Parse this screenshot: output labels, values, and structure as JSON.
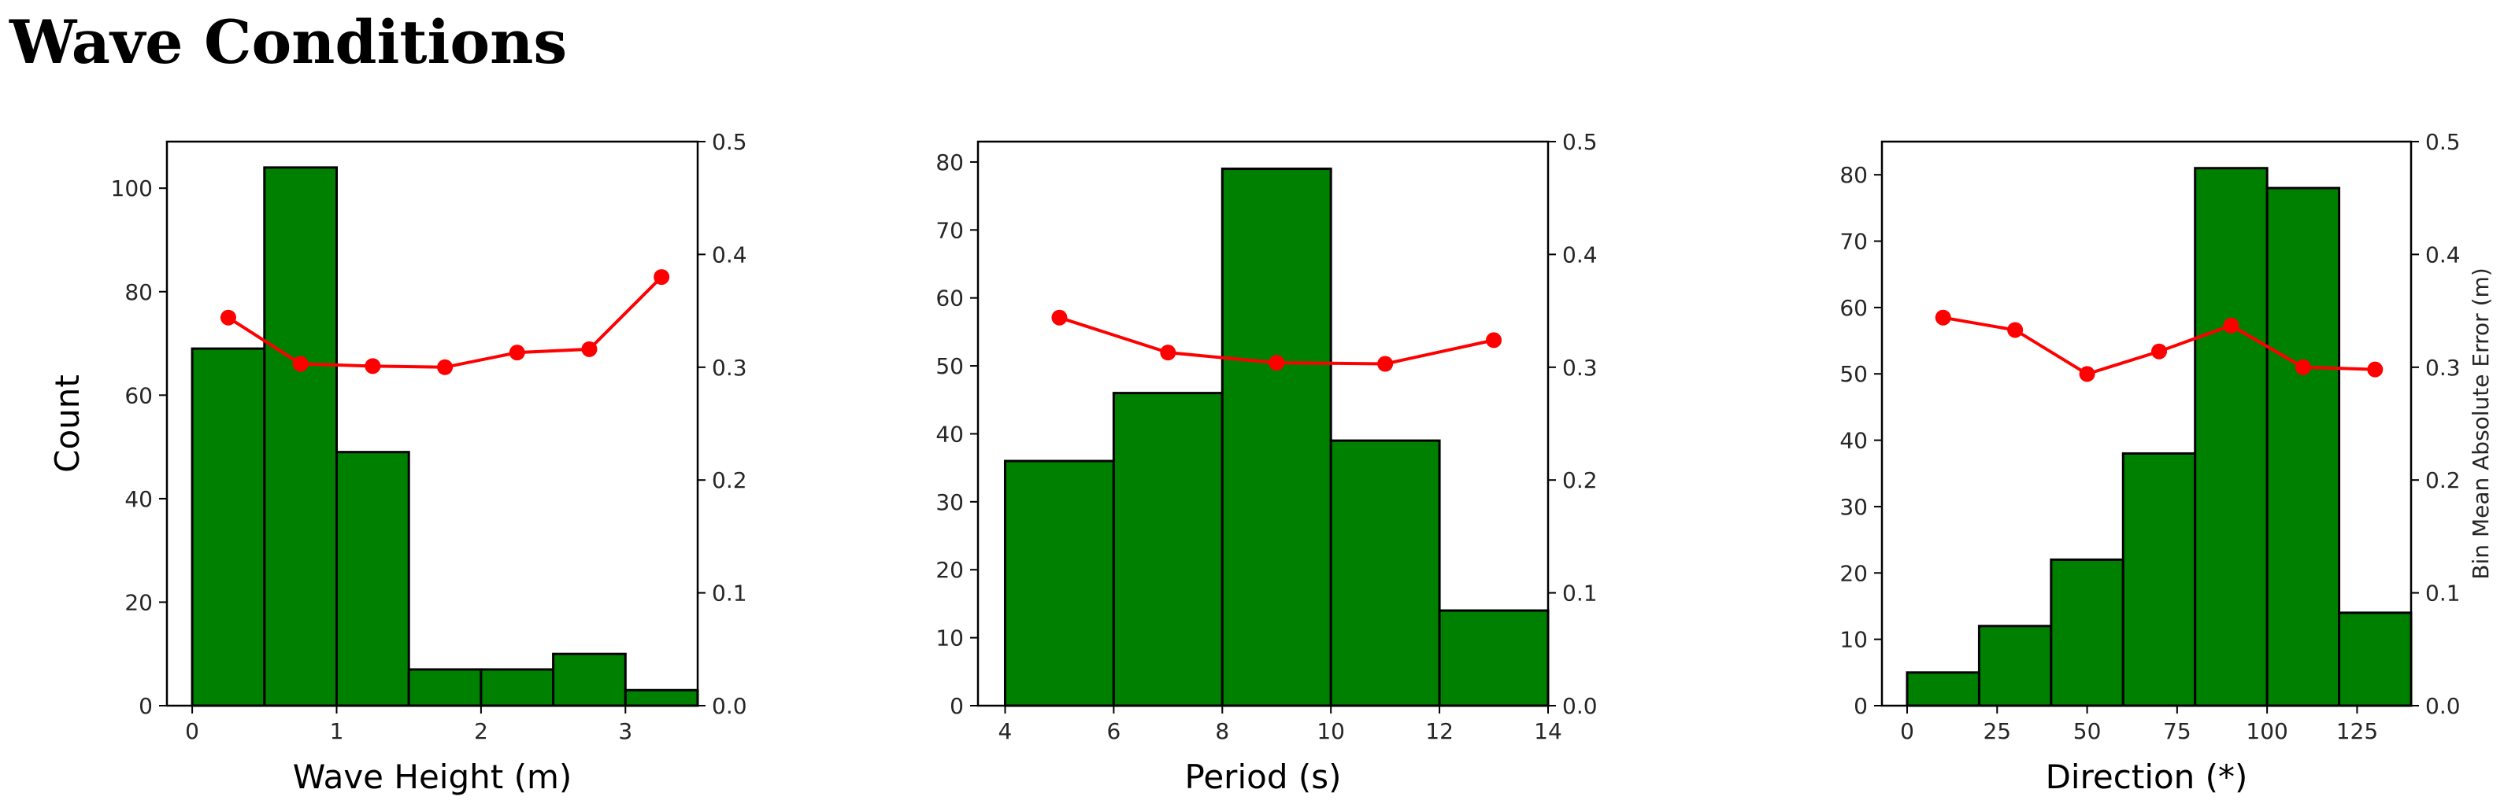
{
  "page": {
    "title": "Wave Conditions"
  },
  "colors": {
    "bar_fill": "#008000",
    "bar_edge": "#000000",
    "line": "#ff0000"
  },
  "chart_data": [
    {
      "type": "bar",
      "xlabel": "Wave Height (m)",
      "ylabel": "Count",
      "y2label": "",
      "xlim": [
        -0.175,
        3.5
      ],
      "ylim": [
        0,
        109
      ],
      "y2lim": [
        0,
        0.5
      ],
      "xticks": [
        0,
        1,
        2,
        3
      ],
      "yticks": [
        0,
        20,
        40,
        60,
        80,
        100
      ],
      "y2ticks": [
        0.0,
        0.1,
        0.2,
        0.3,
        0.4,
        0.5
      ],
      "bins": [
        [
          0,
          0.5
        ],
        [
          0.5,
          1.0
        ],
        [
          1.0,
          1.5
        ],
        [
          1.5,
          2.0
        ],
        [
          2.0,
          2.5
        ],
        [
          2.5,
          3.0
        ],
        [
          3.0,
          3.5
        ]
      ],
      "counts": [
        69,
        104,
        49,
        7,
        7,
        10,
        3
      ],
      "error_x": [
        0.25,
        0.75,
        1.25,
        1.75,
        2.25,
        2.75,
        3.25
      ],
      "error_y": [
        0.344,
        0.303,
        0.301,
        0.3,
        0.313,
        0.316,
        0.38
      ]
    },
    {
      "type": "bar",
      "xlabel": "Period (s)",
      "ylabel": "",
      "y2label": "",
      "xlim": [
        3.5,
        14
      ],
      "ylim": [
        0,
        83
      ],
      "y2lim": [
        0,
        0.5
      ],
      "xticks": [
        4,
        6,
        8,
        10,
        12,
        14
      ],
      "yticks": [
        0,
        10,
        20,
        30,
        40,
        50,
        60,
        70,
        80
      ],
      "y2ticks": [
        0.0,
        0.1,
        0.2,
        0.3,
        0.4,
        0.5
      ],
      "bins": [
        [
          4,
          6
        ],
        [
          6,
          8
        ],
        [
          8,
          10
        ],
        [
          10,
          12
        ],
        [
          12,
          14
        ]
      ],
      "counts": [
        36,
        46,
        79,
        39,
        14
      ],
      "error_x": [
        5,
        7,
        9,
        11,
        13
      ],
      "error_y": [
        0.344,
        0.313,
        0.304,
        0.303,
        0.324
      ]
    },
    {
      "type": "bar",
      "xlabel": "Direction (*)",
      "ylabel": "",
      "y2label": "Bin Mean Absolute Error (m)",
      "xlim": [
        -7,
        140
      ],
      "ylim": [
        0,
        85
      ],
      "y2lim": [
        0,
        0.5
      ],
      "xticks": [
        0,
        25,
        50,
        75,
        100,
        125
      ],
      "yticks": [
        0,
        10,
        20,
        30,
        40,
        50,
        60,
        70,
        80
      ],
      "y2ticks": [
        0.0,
        0.1,
        0.2,
        0.3,
        0.4,
        0.5
      ],
      "bins": [
        [
          0,
          20
        ],
        [
          20,
          40
        ],
        [
          40,
          60
        ],
        [
          60,
          80
        ],
        [
          80,
          100
        ],
        [
          100,
          120
        ],
        [
          120,
          140
        ]
      ],
      "counts": [
        5,
        12,
        22,
        38,
        81,
        78,
        14
      ],
      "error_x": [
        10,
        30,
        50,
        70,
        90,
        110,
        130
      ],
      "error_y": [
        0.344,
        0.333,
        0.294,
        0.314,
        0.337,
        0.3,
        0.298
      ]
    }
  ]
}
